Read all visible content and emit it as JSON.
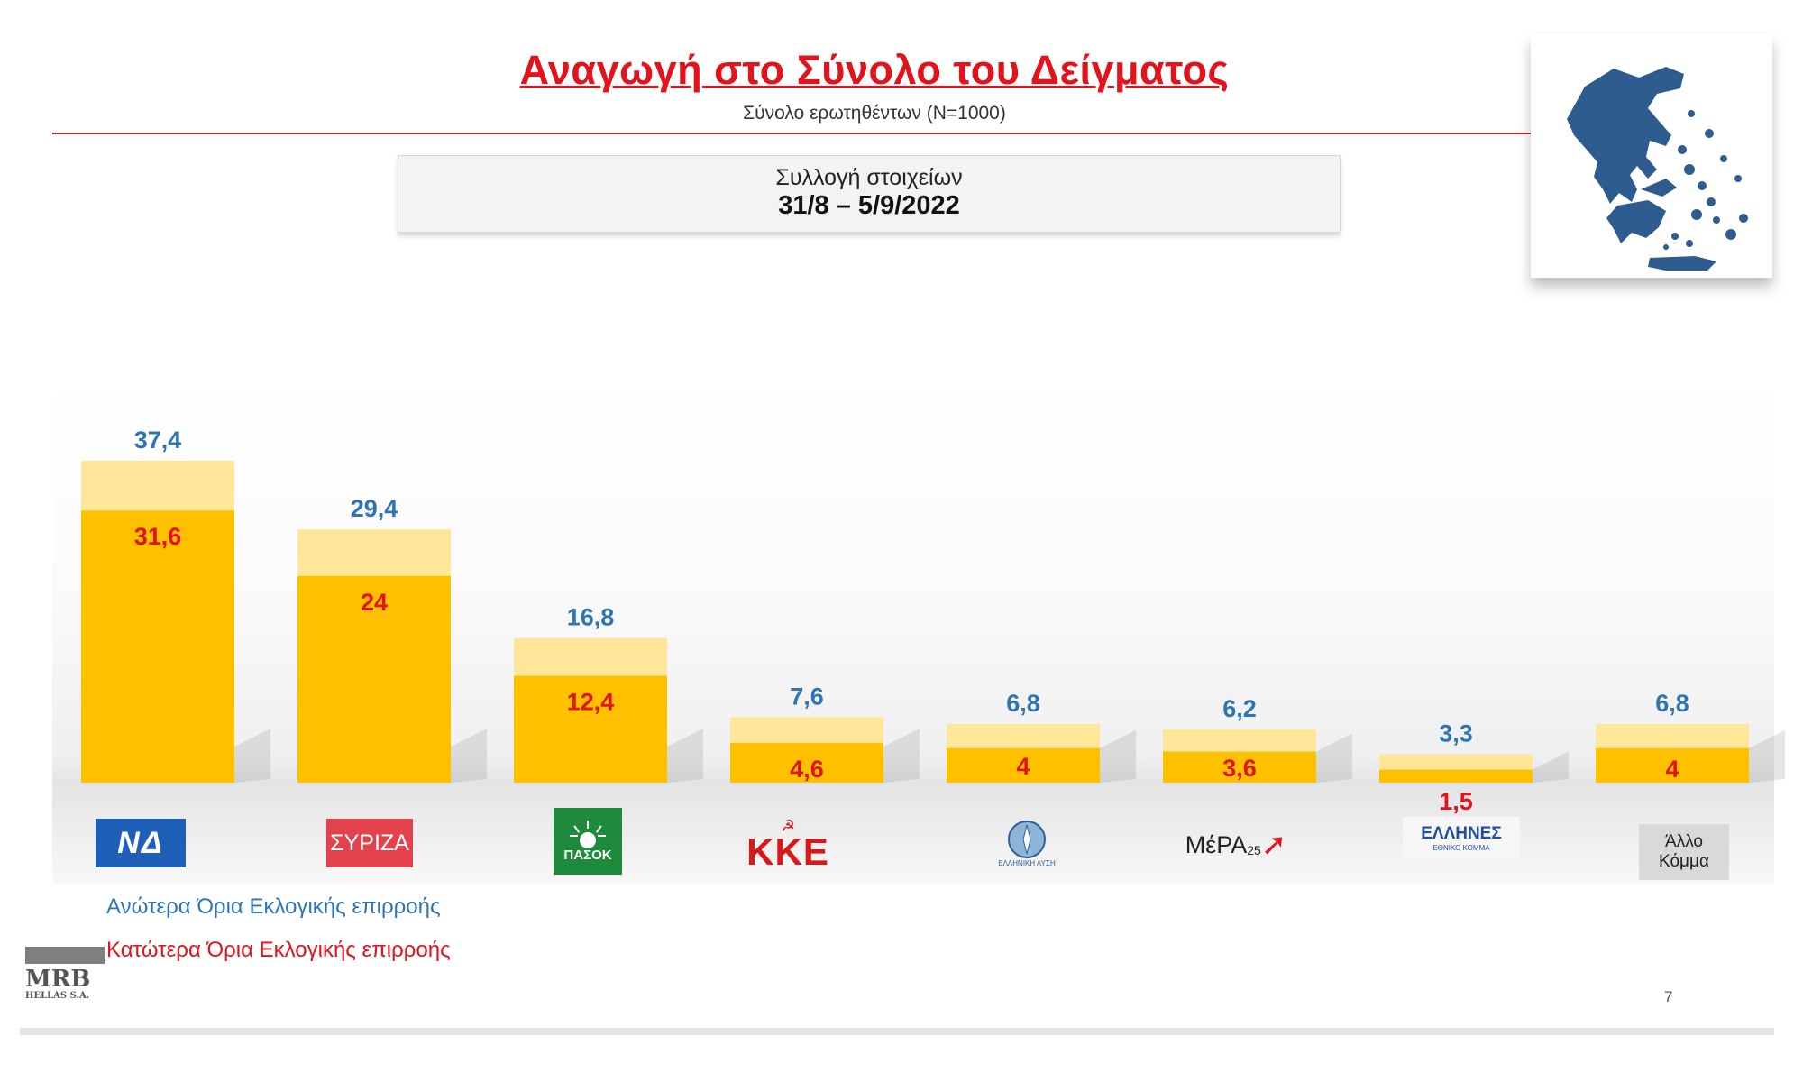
{
  "header": {
    "title": "Αναγωγή στο Σύνολο του Δείγματος",
    "subtitle": "Σύνολο ερωτηθέντων (N=1000)",
    "collection_label": "Συλλογή στοιχείων",
    "collection_dates": "31/8 – 5/9/2022"
  },
  "chart_data": {
    "type": "bar",
    "series": [
      {
        "name": "Ανώτερα Όρια Εκλογικής επιρροής",
        "labels": [
          "37,4",
          "29,4",
          "16,8",
          "7,6",
          "6,8",
          "6,2",
          "3,3",
          "6,8"
        ],
        "values": [
          37.4,
          29.4,
          16.8,
          7.6,
          6.8,
          6.2,
          3.3,
          6.8
        ]
      },
      {
        "name": "Κατώτερα Όρια Εκλογικής επιρροής",
        "labels": [
          "31,6",
          "24",
          "12,4",
          "4,6",
          "4",
          "3,6",
          "1,5",
          "4"
        ],
        "values": [
          31.6,
          24,
          12.4,
          4.6,
          4,
          3.6,
          1.5,
          4
        ]
      }
    ],
    "ylim": [
      0,
      40
    ],
    "colors": {
      "upper": "#ffe699",
      "lower": "#ffc000",
      "upper_label": "#2e75b6",
      "lower_label": "#e3121b"
    }
  },
  "logos": {
    "nd": "ΝΔ",
    "syriza": "ΣΥΡΙΖΑ",
    "pasok": "ΠΑΣΟΚ",
    "kke": "ΚΚΕ",
    "elliniki_lysi": "ΕΛΛΗΝΙΚΗ ΛΥΣΗ",
    "mera25": "ΜέΡΑ",
    "mera25_num": "25",
    "ellines": "ΕΛΛΗΝΕΣ",
    "ellines_sub": "ΕΘΝΙΚΟ ΚΟΜΜΑ",
    "allo_line1": "Άλλο",
    "allo_line2": "Κόμμα"
  },
  "legend": {
    "upper": "Ανώτερα Όρια Εκλογικής επιρροής",
    "lower": "Κατώτερα Όρια Εκλογικής επιρροής"
  },
  "brand": {
    "name": "MRB",
    "sub": "HELLAS S.A."
  },
  "page_number": "7",
  "map_color": "#2f5c8f"
}
